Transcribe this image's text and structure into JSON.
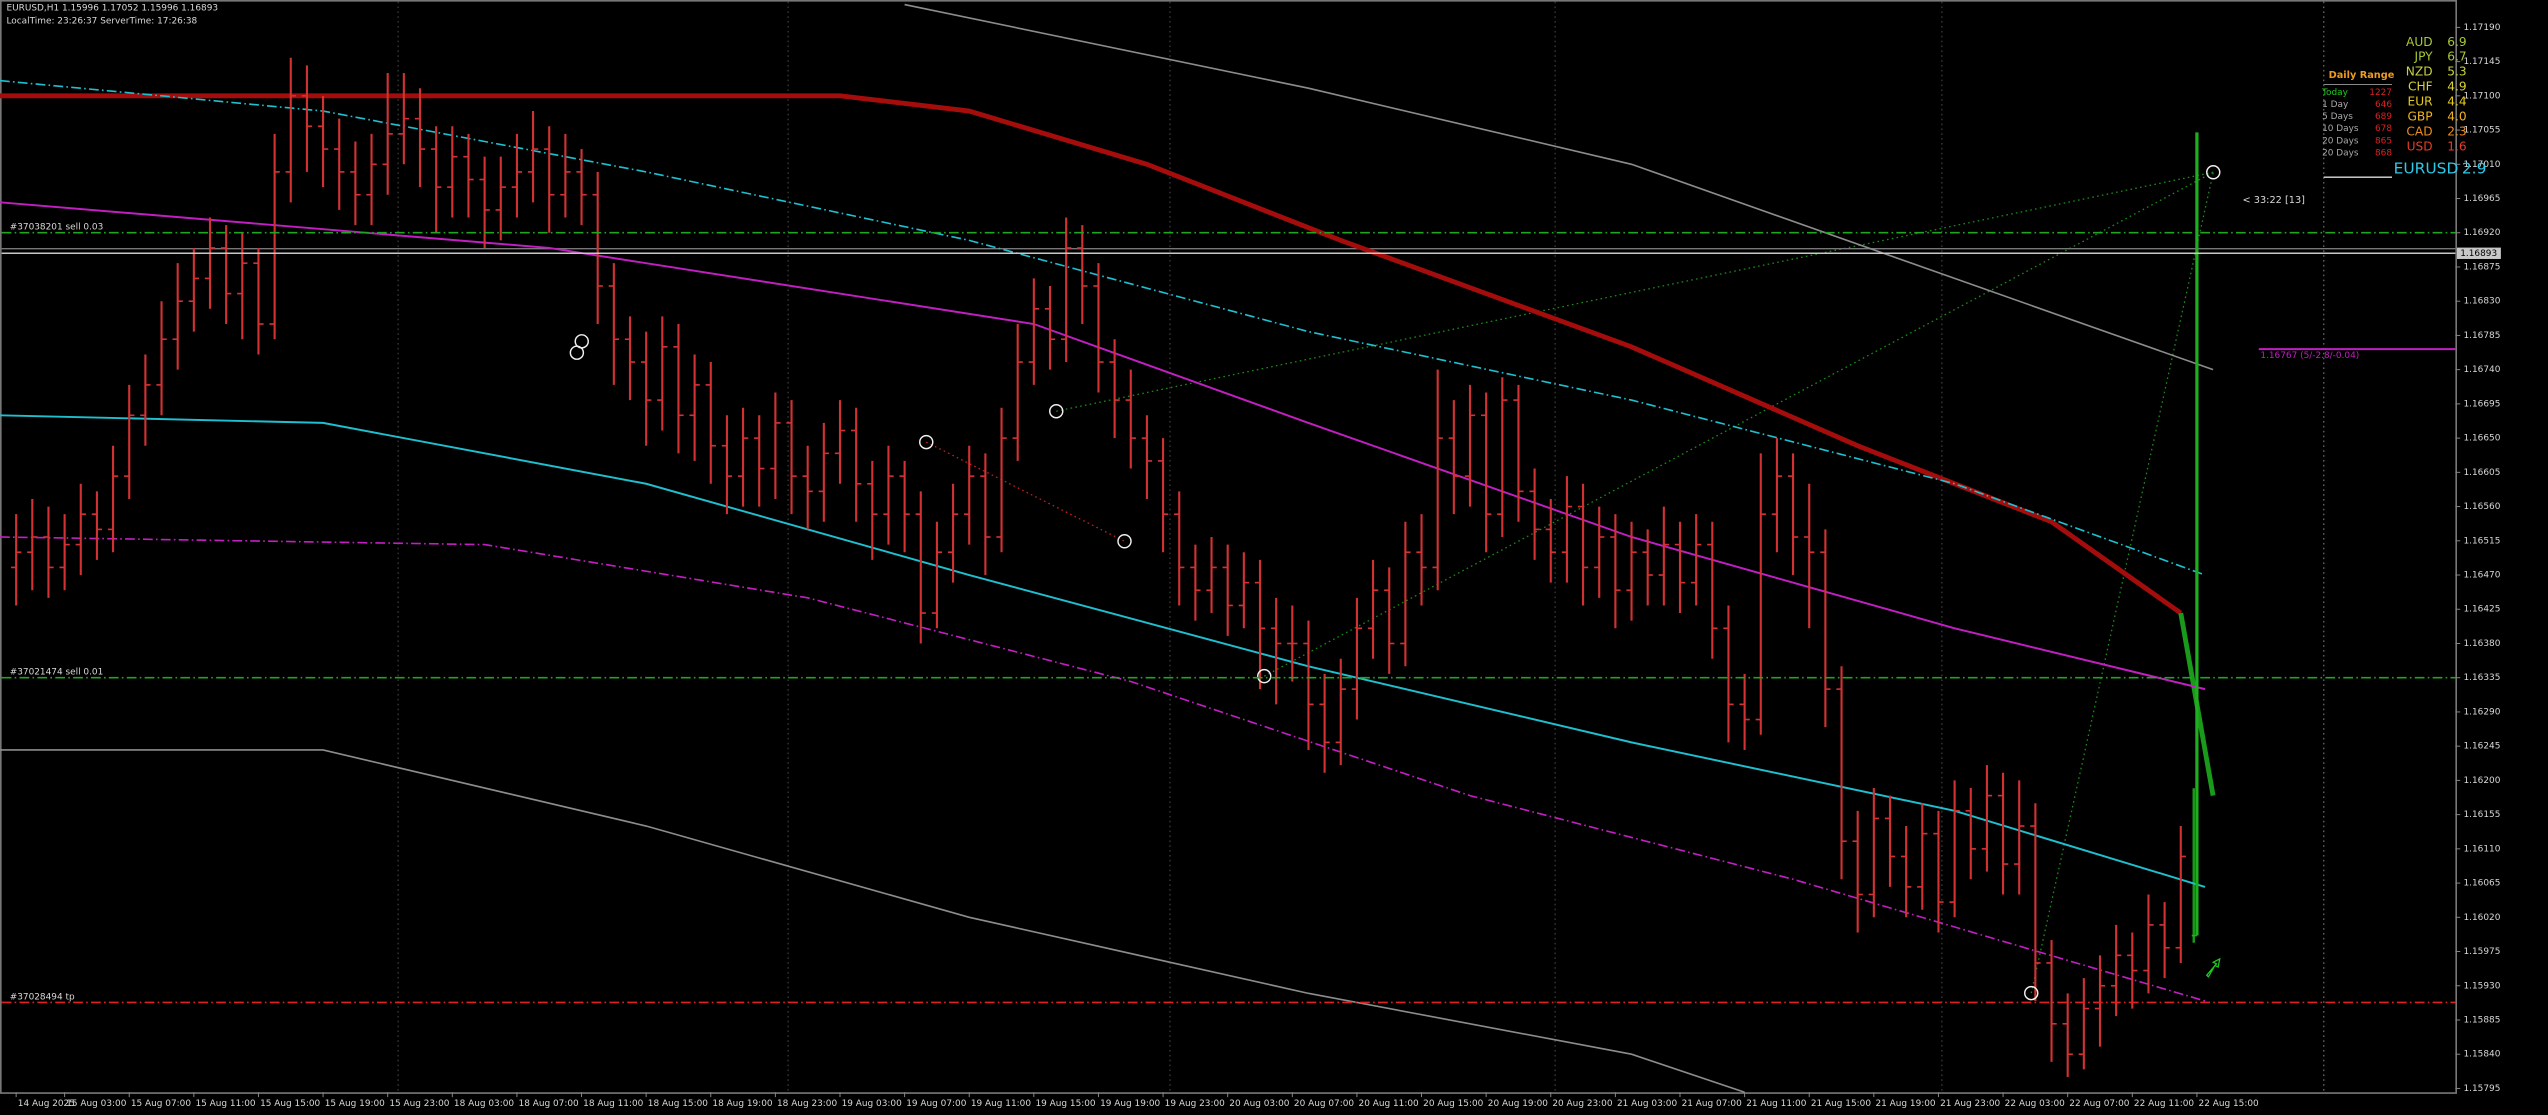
{
  "chart_data": {
    "type": "ohlc",
    "header": {
      "symbol_line": "EURUSD,H1  1.15996 1.17052 1.15996 1.16893",
      "time_line": "LocalTime: 23:26:37    ServerTime: 17:26:38"
    },
    "color": "#d23232",
    "last_color": "#1fae1f",
    "open": [
      1.1648,
      1.165,
      1.1652,
      1.1648,
      1.1651,
      1.1655,
      1.1653,
      1.166,
      1.1668,
      1.1672,
      1.1678,
      1.1683,
      1.1686,
      1.169,
      1.1684,
      1.1688,
      1.168,
      1.17,
      1.171,
      1.1706,
      1.1703,
      1.17,
      1.1697,
      1.1701,
      1.1705,
      1.1707,
      1.1703,
      1.1698,
      1.1702,
      1.1699,
      1.1695,
      1.1698,
      1.17,
      1.1703,
      1.1697,
      1.17,
      1.1697,
      1.1685,
      1.1678,
      1.1675,
      1.167,
      1.1677,
      1.1668,
      1.1672,
      1.1664,
      1.166,
      1.1665,
      1.1661,
      1.1667,
      1.166,
      1.1658,
      1.1663,
      1.1666,
      1.1659,
      1.1655,
      1.166,
      1.1655,
      1.1642,
      1.165,
      1.1655,
      1.166,
      1.1652,
      1.1665,
      1.1675,
      1.1682,
      1.1678,
      1.169,
      1.1685,
      1.1675,
      1.167,
      1.1665,
      1.1662,
      1.1655,
      1.1648,
      1.1645,
      1.1648,
      1.1643,
      1.1646,
      1.164,
      1.1638,
      1.1638,
      1.163,
      1.1625,
      1.1632,
      1.164,
      1.1645,
      1.1638,
      1.165,
      1.1648,
      1.1665,
      1.166,
      1.1668,
      1.1655,
      1.167,
      1.1658,
      1.1653,
      1.165,
      1.1656,
      1.1648,
      1.1652,
      1.1645,
      1.165,
      1.1647,
      1.1651,
      1.1646,
      1.1651,
      1.164,
      1.163,
      1.1628,
      1.1655,
      1.166,
      1.1652,
      1.165,
      1.1632,
      1.1612,
      1.1605,
      1.1615,
      1.161,
      1.1606,
      1.1613,
      1.1604,
      1.1616,
      1.1611,
      1.1618,
      1.1609,
      1.1614,
      1.1596,
      1.1588,
      1.1584,
      1.159,
      1.1593,
      1.1597,
      1.1595,
      1.1601,
      1.1598,
      1.15996
    ],
    "high": [
      1.1655,
      1.1657,
      1.1656,
      1.1655,
      1.1659,
      1.1658,
      1.1664,
      1.1672,
      1.1676,
      1.1683,
      1.1688,
      1.169,
      1.1694,
      1.1693,
      1.1692,
      1.169,
      1.1705,
      1.1715,
      1.1714,
      1.171,
      1.1707,
      1.1704,
      1.1705,
      1.1713,
      1.1713,
      1.1711,
      1.1706,
      1.1706,
      1.1705,
      1.1702,
      1.1702,
      1.1705,
      1.1708,
      1.1706,
      1.1705,
      1.1703,
      1.17,
      1.1688,
      1.1681,
      1.1679,
      1.1681,
      1.168,
      1.1676,
      1.1675,
      1.1668,
      1.1669,
      1.1668,
      1.1671,
      1.167,
      1.1664,
      1.1667,
      1.167,
      1.1669,
      1.1662,
      1.1664,
      1.1662,
      1.1658,
      1.1654,
      1.1659,
      1.1664,
      1.1663,
      1.1669,
      1.168,
      1.1686,
      1.1685,
      1.1694,
      1.1693,
      1.1688,
      1.1678,
      1.1674,
      1.1668,
      1.1665,
      1.1658,
      1.1651,
      1.1652,
      1.1651,
      1.165,
      1.1649,
      1.1644,
      1.1643,
      1.1641,
      1.1634,
      1.1636,
      1.1644,
      1.1649,
      1.1648,
      1.1654,
      1.1655,
      1.1674,
      1.167,
      1.1672,
      1.1671,
      1.1673,
      1.1672,
      1.1661,
      1.1657,
      1.166,
      1.1659,
      1.1656,
      1.1655,
      1.1654,
      1.1653,
      1.1656,
      1.1654,
      1.1655,
      1.1654,
      1.1643,
      1.1634,
      1.1663,
      1.1665,
      1.1663,
      1.1659,
      1.1653,
      1.1635,
      1.1616,
      1.1619,
      1.1618,
      1.1614,
      1.1617,
      1.1616,
      1.162,
      1.1619,
      1.1622,
      1.1621,
      1.162,
      1.1617,
      1.1599,
      1.1592,
      1.1594,
      1.1597,
      1.1601,
      1.16,
      1.1605,
      1.1604,
      1.1614,
      1.17052
    ],
    "low": [
      1.1643,
      1.1645,
      1.1644,
      1.1645,
      1.1647,
      1.1649,
      1.165,
      1.1657,
      1.1664,
      1.1668,
      1.1674,
      1.1679,
      1.1682,
      1.168,
      1.1678,
      1.1676,
      1.1678,
      1.1696,
      1.17,
      1.1698,
      1.1695,
      1.1693,
      1.1693,
      1.1697,
      1.1701,
      1.1698,
      1.1692,
      1.1694,
      1.1694,
      1.169,
      1.1691,
      1.1694,
      1.1696,
      1.1692,
      1.1694,
      1.1693,
      1.168,
      1.1672,
      1.167,
      1.1664,
      1.1666,
      1.1663,
      1.1662,
      1.1659,
      1.1655,
      1.1656,
      1.1656,
      1.1657,
      1.1655,
      1.1653,
      1.1654,
      1.1659,
      1.1654,
      1.1649,
      1.1651,
      1.165,
      1.1638,
      1.164,
      1.1646,
      1.1651,
      1.1647,
      1.165,
      1.1662,
      1.1672,
      1.1674,
      1.1675,
      1.168,
      1.1671,
      1.1665,
      1.1661,
      1.1657,
      1.165,
      1.1643,
      1.1641,
      1.1642,
      1.1639,
      1.164,
      1.1632,
      1.163,
      1.1633,
      1.1624,
      1.1621,
      1.1622,
      1.1628,
      1.1636,
      1.1634,
      1.1635,
      1.1643,
      1.1645,
      1.1655,
      1.1656,
      1.165,
      1.1652,
      1.1654,
      1.1649,
      1.1646,
      1.1646,
      1.1643,
      1.1644,
      1.164,
      1.1641,
      1.1643,
      1.1643,
      1.1642,
      1.1643,
      1.1636,
      1.1625,
      1.1624,
      1.1626,
      1.165,
      1.1647,
      1.164,
      1.1627,
      1.1607,
      1.16,
      1.1602,
      1.1606,
      1.1602,
      1.1603,
      1.16,
      1.1602,
      1.1607,
      1.1608,
      1.1605,
      1.1605,
      1.1591,
      1.1583,
      1.1581,
      1.1582,
      1.1585,
      1.1589,
      1.159,
      1.1592,
      1.1594,
      1.1596,
      1.15996
    ],
    "close": [
      1.165,
      1.1652,
      1.1648,
      1.1651,
      1.1655,
      1.1653,
      1.166,
      1.1668,
      1.1672,
      1.1678,
      1.1683,
      1.1686,
      1.169,
      1.1684,
      1.1688,
      1.168,
      1.17,
      1.171,
      1.1706,
      1.1703,
      1.17,
      1.1697,
      1.1701,
      1.1705,
      1.1707,
      1.1703,
      1.1698,
      1.1702,
      1.1699,
      1.1695,
      1.1698,
      1.17,
      1.1703,
      1.1697,
      1.17,
      1.1697,
      1.1685,
      1.1678,
      1.1675,
      1.167,
      1.1677,
      1.1668,
      1.1672,
      1.1664,
      1.166,
      1.1665,
      1.1661,
      1.1667,
      1.166,
      1.1658,
      1.1663,
      1.1666,
      1.1659,
      1.1655,
      1.166,
      1.1655,
      1.1642,
      1.165,
      1.1655,
      1.166,
      1.1652,
      1.1665,
      1.1675,
      1.1682,
      1.1678,
      1.169,
      1.1685,
      1.1675,
      1.167,
      1.1665,
      1.1662,
      1.1655,
      1.1648,
      1.1645,
      1.1648,
      1.1643,
      1.1646,
      1.164,
      1.1638,
      1.1638,
      1.163,
      1.1625,
      1.1632,
      1.164,
      1.1645,
      1.1638,
      1.165,
      1.1648,
      1.1665,
      1.166,
      1.1668,
      1.1655,
      1.167,
      1.1658,
      1.1653,
      1.165,
      1.1656,
      1.1648,
      1.1652,
      1.1645,
      1.165,
      1.1647,
      1.1651,
      1.1646,
      1.1651,
      1.164,
      1.163,
      1.1628,
      1.1655,
      1.166,
      1.1652,
      1.165,
      1.1632,
      1.1612,
      1.1605,
      1.1615,
      1.161,
      1.1606,
      1.1613,
      1.1604,
      1.1616,
      1.1611,
      1.1618,
      1.1609,
      1.1614,
      1.1596,
      1.1588,
      1.1584,
      1.159,
      1.1593,
      1.1597,
      1.1595,
      1.1601,
      1.1598,
      1.161,
      1.16893
    ],
    "lines": [
      {
        "color": "#a50c0c",
        "width": 3,
        "style": "solid",
        "x": [
          -1,
          51,
          59,
          70,
          82,
          100,
          114,
          126,
          134
        ],
        "values": [
          1.171,
          1.171,
          1.1708,
          1.1701,
          1.1691,
          1.1677,
          1.1664,
          1.1654,
          1.1642
        ]
      },
      {
        "color": "#1a9a1a",
        "width": 3,
        "style": "solid",
        "x": [
          134,
          136
        ],
        "values": [
          1.1642,
          1.1618
        ]
      },
      {
        "color": "#c21fc2",
        "width": 1.2,
        "style": "solid",
        "x": [
          -1,
          33,
          63,
          80,
          100,
          120,
          135.5
        ],
        "values": [
          1.1696,
          1.169,
          1.168,
          1.1667,
          1.1652,
          1.164,
          1.1632
        ]
      },
      {
        "color": "#1fbfcf",
        "width": 1.2,
        "style": "solid",
        "x": [
          -1,
          19,
          39,
          59,
          80,
          100,
          120,
          135.5
        ],
        "values": [
          1.1668,
          1.1667,
          1.1659,
          1.1647,
          1.1635,
          1.1625,
          1.1616,
          1.1606
        ]
      },
      {
        "color": "#1fbfcf",
        "width": 1,
        "style": "dashdot",
        "x": [
          -1,
          19,
          39,
          59,
          80,
          100,
          120,
          135.5
        ],
        "values": [
          1.1712,
          1.1708,
          1.17,
          1.1691,
          1.1679,
          1.167,
          1.1659,
          1.1647
        ]
      },
      {
        "color": "#c21fc2",
        "width": 1,
        "style": "dashdot",
        "x": [
          -1,
          29,
          49,
          69,
          90,
          110,
          135.5
        ],
        "values": [
          1.1652,
          1.1651,
          1.1644,
          1.1633,
          1.1618,
          1.1607,
          1.1591
        ]
      },
      {
        "color": "#8c8c8c",
        "width": 1,
        "style": "solid",
        "x": [
          55,
          80,
          100,
          120,
          136
        ],
        "values": [
          1.1722,
          1.1711,
          1.1701,
          1.1686,
          1.1674
        ]
      },
      {
        "color": "#8c8c8c",
        "width": 1,
        "style": "solid",
        "x": [
          -1,
          19,
          39,
          59,
          80,
          100,
          107
        ],
        "values": [
          1.1624,
          1.1624,
          1.1614,
          1.1602,
          1.1592,
          1.1584,
          1.1579
        ]
      }
    ],
    "levels": [
      {
        "value": 1.1692,
        "color": "#1fa51f",
        "style": "dashdot",
        "label": "#37038201 sell 0.03"
      },
      {
        "value": 1.16335,
        "color": "#1fa51f",
        "style": "dashdot",
        "label": "#37021474 sell 0.01"
      },
      {
        "value": 1.15908,
        "color": "#e02020",
        "style": "dashdot",
        "label": "#37028494 tp"
      }
    ],
    "price_line": {
      "value": 1.16893,
      "color": "#c8c8c8"
    },
    "order_line": {
      "value": 1.16767,
      "color": "#c21fc2",
      "label": "1.16767 (5/-2.8/-0.04)"
    },
    "timer": "< 33:22 [13]",
    "xlim": [
      -1,
      151
    ],
    "ylim": [
      1.1579,
      1.17226
    ],
    "yticks": [
      {
        "value": 1.1719,
        "label": "1.17190"
      },
      {
        "value": 1.17145,
        "label": "1.17145"
      },
      {
        "value": 1.171,
        "label": "1.17100"
      },
      {
        "value": 1.17055,
        "label": "1.17055"
      },
      {
        "value": 1.1701,
        "label": "1.17010"
      },
      {
        "value": 1.16965,
        "label": "1.16965"
      },
      {
        "value": 1.1692,
        "label": "1.16920"
      },
      {
        "value": 1.16875,
        "label": "1.16875"
      },
      {
        "value": 1.1683,
        "label": "1.16830"
      },
      {
        "value": 1.16785,
        "label": "1.16785"
      },
      {
        "value": 1.1674,
        "label": "1.16740"
      },
      {
        "value": 1.16695,
        "label": "1.16695"
      },
      {
        "value": 1.1665,
        "label": "1.16650"
      },
      {
        "value": 1.16605,
        "label": "1.16605"
      },
      {
        "value": 1.1656,
        "label": "1.16560"
      },
      {
        "value": 1.16515,
        "label": "1.16515"
      },
      {
        "value": 1.1647,
        "label": "1.16470"
      },
      {
        "value": 1.16425,
        "label": "1.16425"
      },
      {
        "value": 1.1638,
        "label": "1.16380"
      },
      {
        "value": 1.16335,
        "label": "1.16335"
      },
      {
        "value": 1.1629,
        "label": "1.16290"
      },
      {
        "value": 1.16245,
        "label": "1.16245"
      },
      {
        "value": 1.162,
        "label": "1.16200"
      },
      {
        "value": 1.16155,
        "label": "1.16155"
      },
      {
        "value": 1.1611,
        "label": "1.16110"
      },
      {
        "value": 1.16065,
        "label": "1.16065"
      },
      {
        "value": 1.1602,
        "label": "1.16020"
      },
      {
        "value": 1.15975,
        "label": "1.15975"
      },
      {
        "value": 1.1593,
        "label": "1.15930"
      },
      {
        "value": 1.15885,
        "label": "1.15885"
      },
      {
        "value": 1.1584,
        "label": "1.15840"
      },
      {
        "value": 1.15795,
        "label": "1.15795"
      }
    ],
    "xticks": [
      {
        "value": 0,
        "label": "14 Aug 2025"
      },
      {
        "value": 3,
        "label": "15 Aug 03:00"
      },
      {
        "value": 7,
        "label": "15 Aug 07:00"
      },
      {
        "value": 11,
        "label": "15 Aug 11:00"
      },
      {
        "value": 15,
        "label": "15 Aug 15:00"
      },
      {
        "value": 19,
        "label": "15 Aug 19:00"
      },
      {
        "value": 23,
        "label": "15 Aug 23:00"
      },
      {
        "value": 27,
        "label": "18 Aug 03:00"
      },
      {
        "value": 31,
        "label": "18 Aug 07:00"
      },
      {
        "value": 35,
        "label": "18 Aug 11:00"
      },
      {
        "value": 39,
        "label": "18 Aug 15:00"
      },
      {
        "value": 43,
        "label": "18 Aug 19:00"
      },
      {
        "value": 47,
        "label": "18 Aug 23:00"
      },
      {
        "value": 51,
        "label": "19 Aug 03:00"
      },
      {
        "value": 55,
        "label": "19 Aug 07:00"
      },
      {
        "value": 59,
        "label": "19 Aug 11:00"
      },
      {
        "value": 63,
        "label": "19 Aug 15:00"
      },
      {
        "value": 67,
        "label": "19 Aug 19:00"
      },
      {
        "value": 71,
        "label": "19 Aug 23:00"
      },
      {
        "value": 75,
        "label": "20 Aug 03:00"
      },
      {
        "value": 79,
        "label": "20 Aug 07:00"
      },
      {
        "value": 83,
        "label": "20 Aug 11:00"
      },
      {
        "value": 87,
        "label": "20 Aug 15:00"
      },
      {
        "value": 91,
        "label": "20 Aug 19:00"
      },
      {
        "value": 95,
        "label": "20 Aug 23:00"
      },
      {
        "value": 99,
        "label": "21 Aug 03:00"
      },
      {
        "value": 103,
        "label": "21 Aug 07:00"
      },
      {
        "value": 107,
        "label": "21 Aug 11:00"
      },
      {
        "value": 111,
        "label": "21 Aug 15:00"
      },
      {
        "value": 115,
        "label": "21 Aug 19:00"
      },
      {
        "value": 119,
        "label": "21 Aug 23:00"
      },
      {
        "value": 123,
        "label": "22 Aug 03:00"
      },
      {
        "value": 127,
        "label": "22 Aug 07:00"
      },
      {
        "value": 131,
        "label": "22 Aug 11:00"
      },
      {
        "value": 135,
        "label": "22 Aug 15:00"
      }
    ],
    "strength": {
      "items": [
        {
          "currency": "AUD",
          "value": "6.9",
          "color": "#a6c832"
        },
        {
          "currency": "JPY",
          "value": "6.7",
          "color": "#a6c832"
        },
        {
          "currency": "NZD",
          "value": "5.3",
          "color": "#c8d23c"
        },
        {
          "currency": "CHF",
          "value": "4.9",
          "color": "#dcd232"
        },
        {
          "currency": "EUR",
          "value": "4.4",
          "color": "#e6c81e"
        },
        {
          "currency": "GBP",
          "value": "4.0",
          "color": "#f0b41e"
        },
        {
          "currency": "CAD",
          "value": "2.3",
          "color": "#f08c1e"
        },
        {
          "currency": "USD",
          "value": "1.6",
          "color": "#e63c28"
        }
      ],
      "pair": "EURUSD",
      "pair_value": "2.9",
      "pair_color": "#2fc8e6"
    },
    "daily_range": {
      "title": "Daily Range",
      "title_color": "#f09a1e",
      "value_color": "#e02020",
      "rows": [
        {
          "label": "Today",
          "value": "1227",
          "color": "#1fc81f"
        },
        {
          "label": "1 Day",
          "value": "646",
          "color": "#aaaaaa"
        },
        {
          "label": "5 Days",
          "value": "689",
          "color": "#aaaaaa"
        },
        {
          "label": "10 Days",
          "value": "678",
          "color": "#aaaaaa"
        },
        {
          "label": "20 Days",
          "value": "865",
          "color": "#aaaaaa"
        },
        {
          "label": "20 Days",
          "value": "868",
          "color": "#aaaaaa"
        }
      ]
    }
  }
}
